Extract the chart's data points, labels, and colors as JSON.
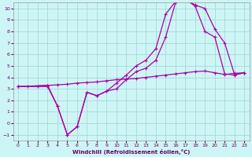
{
  "background_color": "#cef5f5",
  "grid_color": "#aadddd",
  "line_color": "#aa00aa",
  "xlabel": "Windchill (Refroidissement éolien,°C)",
  "xlim": [
    -0.5,
    23.5
  ],
  "ylim": [
    -1.5,
    10.5
  ],
  "xticks": [
    0,
    1,
    2,
    3,
    4,
    5,
    6,
    7,
    8,
    9,
    10,
    11,
    12,
    13,
    14,
    15,
    16,
    17,
    18,
    19,
    20,
    21,
    22,
    23
  ],
  "yticks": [
    -1,
    0,
    1,
    2,
    3,
    4,
    5,
    6,
    7,
    8,
    9,
    10
  ],
  "line1": {
    "x": [
      0,
      1,
      2,
      3,
      4,
      5,
      6,
      7,
      8,
      9,
      10,
      11,
      12,
      13,
      14,
      15,
      16,
      17,
      18,
      19,
      20,
      21,
      22,
      23
    ],
    "y": [
      3.2,
      3.2,
      3.25,
      3.3,
      3.35,
      3.4,
      3.5,
      3.55,
      3.6,
      3.7,
      3.8,
      3.85,
      3.9,
      4.0,
      4.1,
      4.2,
      4.3,
      4.4,
      4.5,
      4.55,
      4.4,
      4.25,
      4.35,
      4.4
    ]
  },
  "line2": {
    "x": [
      0,
      3,
      4,
      5,
      6,
      7,
      8,
      9,
      10,
      11,
      12,
      13,
      14,
      15,
      16,
      17,
      18,
      19,
      20,
      21,
      22,
      23
    ],
    "y": [
      3.2,
      3.2,
      1.5,
      -1.0,
      -0.3,
      2.7,
      2.4,
      2.8,
      3.5,
      4.2,
      5.0,
      5.5,
      6.5,
      9.5,
      10.6,
      10.8,
      10.2,
      8.0,
      7.5,
      4.3,
      4.2,
      4.4
    ]
  },
  "line3": {
    "x": [
      0,
      3,
      4,
      5,
      6,
      7,
      8,
      9,
      10,
      11,
      12,
      13,
      14,
      15,
      16,
      17,
      18,
      19,
      20,
      21,
      22,
      23
    ],
    "y": [
      3.2,
      3.3,
      1.5,
      -1.0,
      -0.3,
      2.7,
      2.4,
      2.8,
      3.0,
      3.8,
      4.5,
      4.8,
      5.5,
      7.5,
      10.5,
      10.8,
      10.3,
      10.0,
      8.2,
      7.0,
      4.25,
      4.4
    ]
  }
}
